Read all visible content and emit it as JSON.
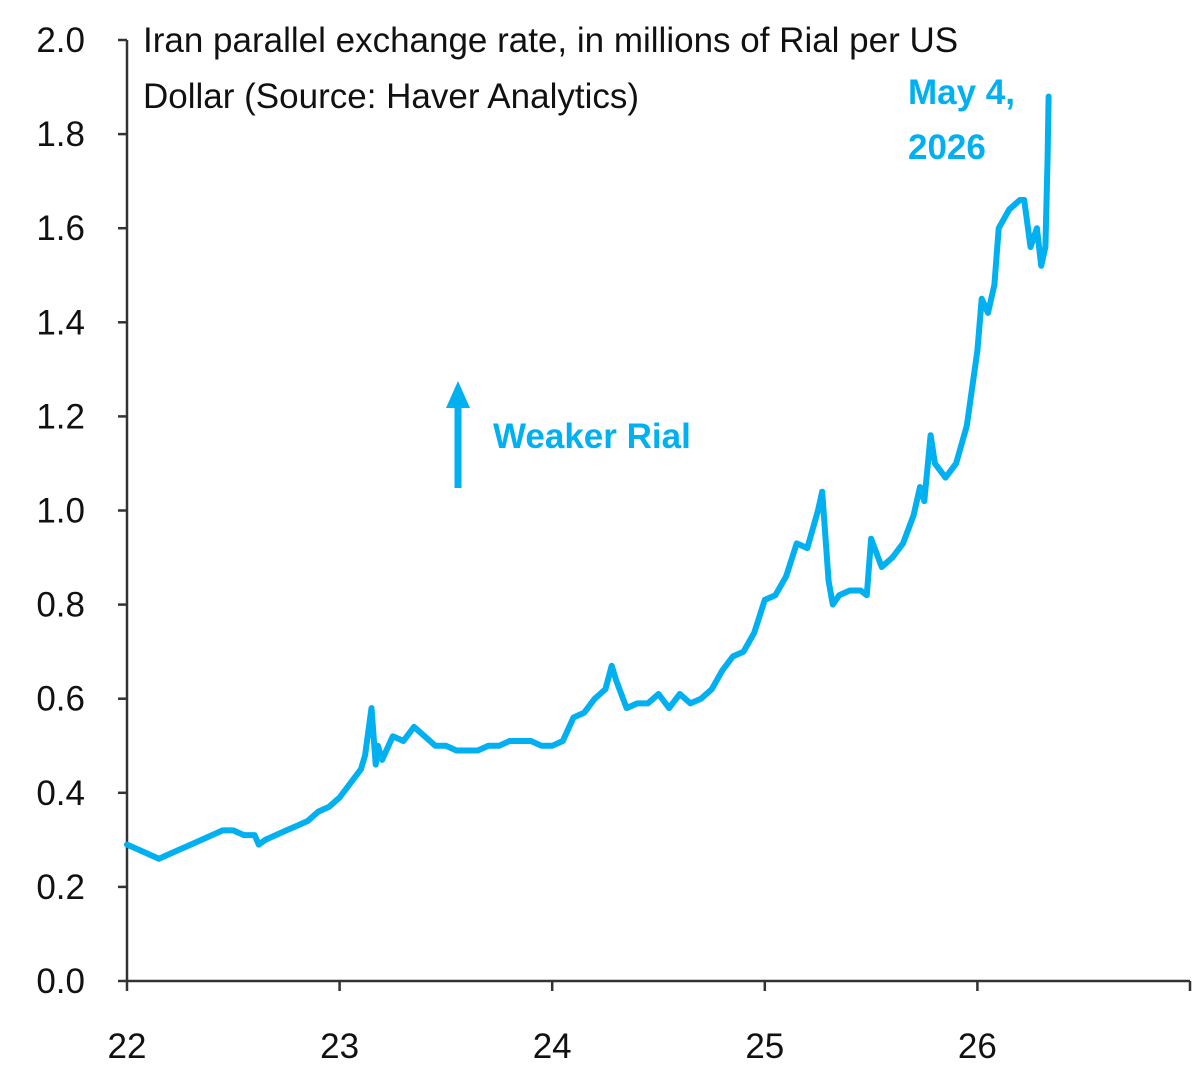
{
  "chart_data": {
    "type": "line",
    "title": "Iran parallel exchange rate, in millions of Rial per US Dollar (Source: Haver Analytics)",
    "title_lines": [
      "Iran parallel exchange rate, in millions of Rial per US",
      "Dollar (Source: Haver Analytics)"
    ],
    "xlabel": "",
    "ylabel": "",
    "xlim": [
      22,
      27
    ],
    "ylim": [
      0,
      2
    ],
    "x_ticks": [
      22,
      23,
      24,
      25,
      26
    ],
    "x_tick_labels": [
      "22",
      "23",
      "24",
      "25",
      "26"
    ],
    "y_ticks": [
      0.0,
      0.2,
      0.4,
      0.6,
      0.8,
      1.0,
      1.2,
      1.4,
      1.6,
      1.8,
      2.0
    ],
    "y_tick_labels": [
      "0.0",
      "0.2",
      "0.4",
      "0.6",
      "0.8",
      "1.0",
      "1.2",
      "1.4",
      "1.6",
      "1.8",
      "2.0"
    ],
    "grid": false,
    "line_color": "#00b0f0",
    "series": [
      {
        "x": [
          22.0,
          22.05,
          22.1,
          22.15,
          22.2,
          22.25,
          22.3,
          22.35,
          22.4,
          22.45,
          22.5,
          22.55,
          22.6,
          22.62,
          22.65,
          22.7,
          22.75,
          22.8,
          22.85,
          22.9,
          22.95,
          23.0,
          23.05,
          23.1,
          23.12,
          23.15,
          23.17,
          23.18,
          23.2,
          23.25,
          23.3,
          23.35,
          23.4,
          23.45,
          23.5,
          23.55,
          23.6,
          23.65,
          23.7,
          23.75,
          23.8,
          23.85,
          23.9,
          23.95,
          24.0,
          24.05,
          24.1,
          24.15,
          24.2,
          24.25,
          24.28,
          24.3,
          24.35,
          24.4,
          24.45,
          24.5,
          24.55,
          24.6,
          24.65,
          24.7,
          24.75,
          24.8,
          24.85,
          24.9,
          24.95,
          25.0,
          25.05,
          25.1,
          25.15,
          25.2,
          25.25,
          25.27,
          25.3,
          25.32,
          25.35,
          25.4,
          25.45,
          25.48,
          25.5,
          25.55,
          25.6,
          25.65,
          25.7,
          25.73,
          25.75,
          25.78,
          25.8,
          25.85,
          25.9,
          25.95,
          26.0,
          26.02,
          26.05,
          26.08,
          26.1,
          26.15,
          26.2,
          26.22,
          26.25,
          26.28,
          26.3,
          26.32,
          26.33,
          26.335
        ],
        "y": [
          0.29,
          0.28,
          0.27,
          0.26,
          0.27,
          0.28,
          0.29,
          0.3,
          0.31,
          0.32,
          0.32,
          0.31,
          0.31,
          0.29,
          0.3,
          0.31,
          0.32,
          0.33,
          0.34,
          0.36,
          0.37,
          0.39,
          0.42,
          0.45,
          0.48,
          0.58,
          0.46,
          0.5,
          0.47,
          0.52,
          0.51,
          0.54,
          0.52,
          0.5,
          0.5,
          0.49,
          0.49,
          0.49,
          0.5,
          0.5,
          0.51,
          0.51,
          0.51,
          0.5,
          0.5,
          0.51,
          0.56,
          0.57,
          0.6,
          0.62,
          0.67,
          0.64,
          0.58,
          0.59,
          0.59,
          0.61,
          0.58,
          0.61,
          0.59,
          0.6,
          0.62,
          0.66,
          0.69,
          0.7,
          0.74,
          0.81,
          0.82,
          0.86,
          0.93,
          0.92,
          1.0,
          1.04,
          0.85,
          0.8,
          0.82,
          0.83,
          0.83,
          0.82,
          0.94,
          0.88,
          0.9,
          0.93,
          0.99,
          1.05,
          1.02,
          1.16,
          1.1,
          1.07,
          1.1,
          1.18,
          1.34,
          1.45,
          1.42,
          1.48,
          1.6,
          1.64,
          1.66,
          1.66,
          1.56,
          1.6,
          1.52,
          1.56,
          1.75,
          1.88
        ]
      }
    ]
  },
  "annotations": {
    "weaker_label": "Weaker Rial",
    "date_label_line1": "May 4,",
    "date_label_line2": "2026"
  }
}
